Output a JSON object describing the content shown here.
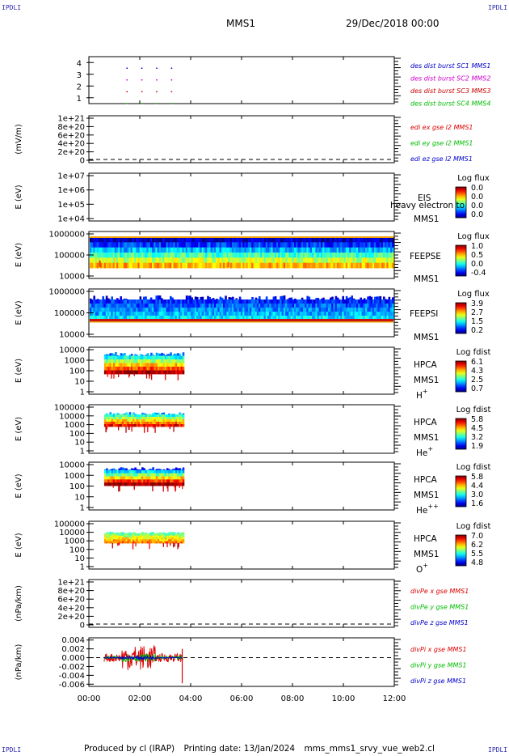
{
  "corners": {
    "top_left": "IPDLI",
    "top_right": "IPDLI",
    "bottom_left": "IPDLI",
    "bottom_right": "IPDLI"
  },
  "header": {
    "spacecraft": "MMS1",
    "date": "29/Dec/2018 00:00"
  },
  "footer": {
    "produced": "Produced by cl (IRAP)",
    "printing": "Printing date: 13/Jan/2024",
    "file": "mms_mms1_srvy_vue_web2.cl"
  },
  "chart_data": [
    {
      "type": "scatter",
      "panel": "des-dist-burst",
      "ylim": [
        0.5,
        4.5
      ],
      "yticks": [
        "1",
        "2",
        "3",
        "4"
      ],
      "xlim": [
        "00:00",
        "12:00"
      ],
      "series": [
        {
          "name": "des dist burst SC1 MMS1",
          "color": "#0000cc",
          "y": 4,
          "x": [
            "01:30",
            "02:05",
            "02:40",
            "03:15"
          ]
        },
        {
          "name": "des dist burst SC2 MMS2",
          "color": "#cc00cc",
          "y": 3,
          "x": [
            "01:30",
            "02:05",
            "02:40",
            "03:15"
          ]
        },
        {
          "name": "des dist burst SC3 MMS3",
          "color": "#cc0000",
          "y": 2,
          "x": [
            "01:30",
            "02:05",
            "02:40",
            "03:15"
          ]
        },
        {
          "name": "des dist burst SC4 MMS4",
          "color": "#00bb00",
          "y": 1,
          "x": [
            "01:30",
            "02:05",
            "02:40",
            "03:15"
          ]
        }
      ]
    },
    {
      "type": "line",
      "panel": "edi",
      "ylabel": "(mV/m)",
      "yticks": [
        "0",
        "2e+20",
        "4e+20",
        "6e+20",
        "8e+20",
        "1e+21"
      ],
      "series": [
        {
          "name": "edi ex gse l2 MMS1",
          "color": "#dd0000"
        },
        {
          "name": "edi ey gse l2 MMS1",
          "color": "#00bb00"
        },
        {
          "name": "edi ez gse l2 MMS1",
          "color": "#0000cc"
        }
      ]
    },
    {
      "type": "heatmap",
      "panel": "eis",
      "ylabel": "E (eV)",
      "yticks": [
        "1e+04",
        "1e+05",
        "1e+06",
        "1e+07"
      ],
      "side_labels": [
        "EIS",
        "heavy electron to",
        "MMS1"
      ],
      "colorbar": {
        "title": "Log flux",
        "ticks": [
          "0.0",
          "0.0",
          "0.0",
          "0.0"
        ]
      }
    },
    {
      "type": "heatmap",
      "panel": "feeps-e",
      "ylabel": "E (eV)",
      "yticks": [
        "10000",
        "100000",
        "1000000"
      ],
      "side_labels": [
        "FEEPSE",
        "MMS1"
      ],
      "colorbar": {
        "title": "Log flux",
        "ticks": [
          "1.0",
          "0.5",
          "0.0",
          "-0.4"
        ]
      }
    },
    {
      "type": "heatmap",
      "panel": "feeps-i",
      "ylabel": "E (eV)",
      "yticks": [
        "10000",
        "100000",
        "1000000"
      ],
      "side_labels": [
        "FEEPSI",
        "MMS1"
      ],
      "colorbar": {
        "title": "Log flux",
        "ticks": [
          "3.9",
          "2.7",
          "1.5",
          "0.2"
        ]
      }
    },
    {
      "type": "heatmap",
      "panel": "hpca-h",
      "ylabel": "E (eV)",
      "yticks": [
        "1",
        "10",
        "100",
        "1000",
        "10000"
      ],
      "side_labels": [
        "HPCA",
        "MMS1"
      ],
      "species": "H",
      "charge": "+",
      "colorbar": {
        "title": "Log fdist",
        "ticks": [
          "6.1",
          "4.3",
          "2.5",
          "0.7"
        ]
      }
    },
    {
      "type": "heatmap",
      "panel": "hpca-he",
      "ylabel": "E (eV)",
      "yticks": [
        "1",
        "10",
        "100",
        "1000",
        "10000",
        "100000"
      ],
      "side_labels": [
        "HPCA",
        "MMS1"
      ],
      "species": "He",
      "charge": "+",
      "colorbar": {
        "title": "Log fdist",
        "ticks": [
          "5.8",
          "4.5",
          "3.2",
          "1.9"
        ]
      }
    },
    {
      "type": "heatmap",
      "panel": "hpca-hepp",
      "ylabel": "E (eV)",
      "yticks": [
        "1",
        "10",
        "100",
        "1000",
        "10000"
      ],
      "side_labels": [
        "HPCA",
        "MMS1"
      ],
      "species": "He",
      "charge": "++",
      "colorbar": {
        "title": "Log fdist",
        "ticks": [
          "5.8",
          "4.4",
          "3.0",
          "1.6"
        ]
      }
    },
    {
      "type": "heatmap",
      "panel": "hpca-o",
      "ylabel": "E (eV)",
      "yticks": [
        "1",
        "10",
        "100",
        "1000",
        "10000",
        "100000"
      ],
      "side_labels": [
        "HPCA",
        "MMS1"
      ],
      "species": "O",
      "charge": "+",
      "colorbar": {
        "title": "Log fdist",
        "ticks": [
          "7.0",
          "6.2",
          "5.5",
          "4.8"
        ]
      }
    },
    {
      "type": "line",
      "panel": "divpe",
      "ylabel": "(nPa/km)",
      "yticks": [
        "0",
        "2e+20",
        "4e+20",
        "6e+20",
        "8e+20",
        "1e+21"
      ],
      "series": [
        {
          "name": "divPe x gse MMS1",
          "color": "#dd0000"
        },
        {
          "name": "divPe y gse MMS1",
          "color": "#00bb00"
        },
        {
          "name": "divPe z gse MMS1",
          "color": "#0000cc"
        }
      ]
    },
    {
      "type": "line",
      "panel": "divpi",
      "ylabel": "(nPa/km)",
      "ylim": [
        -0.0065,
        0.0045
      ],
      "yticks": [
        "-0.006",
        "-0.004",
        "-0.002",
        "0.000",
        "0.002",
        "0.004"
      ],
      "series": [
        {
          "name": "divPi x gse MMS1",
          "color": "#dd0000"
        },
        {
          "name": "divPi y gse MMS1",
          "color": "#00bb00"
        },
        {
          "name": "divPi z gse MMS1",
          "color": "#0000cc"
        }
      ]
    }
  ],
  "xaxis": {
    "ticks": [
      "00:00",
      "02:00",
      "04:00",
      "06:00",
      "08:00",
      "10:00",
      "12:00"
    ],
    "range_hours": [
      0,
      12
    ]
  },
  "activity_hours": [
    0.6,
    3.7
  ]
}
